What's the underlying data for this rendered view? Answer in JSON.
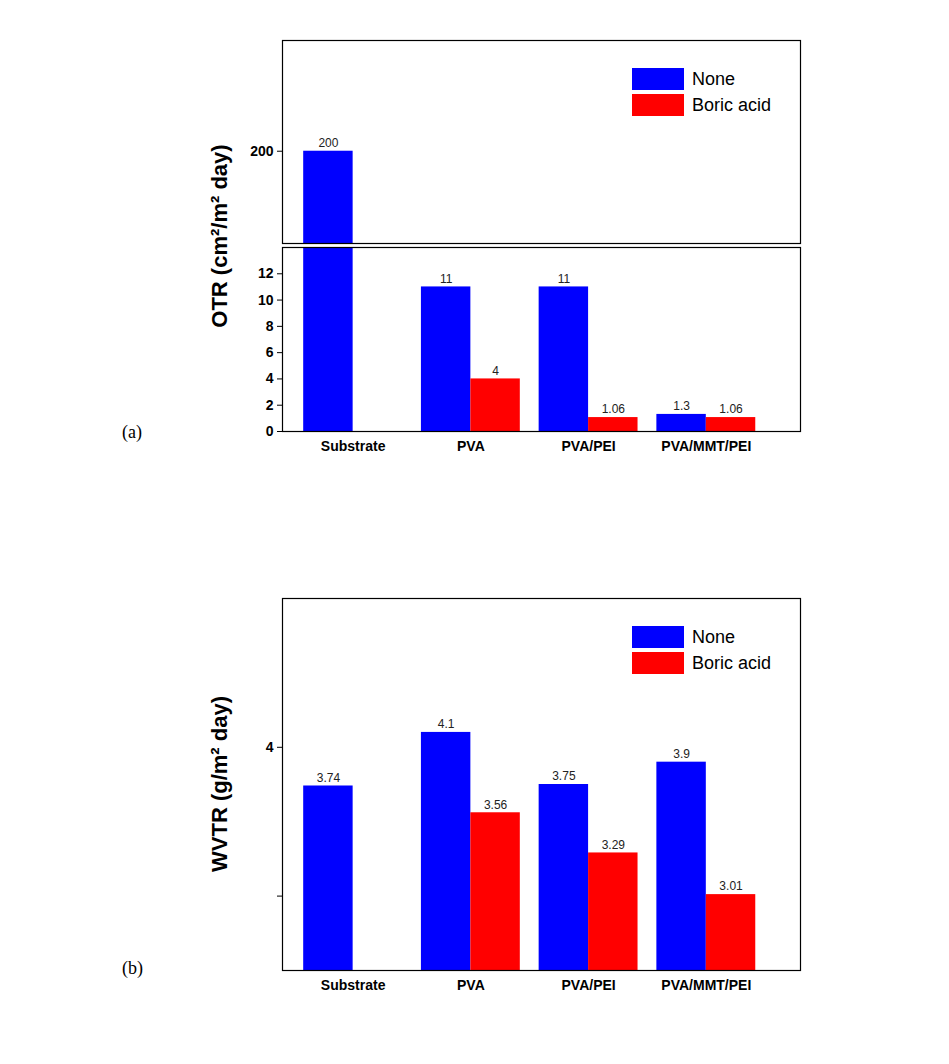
{
  "chart_data": [
    {
      "type": "bar",
      "title": "(a)",
      "categories": [
        "Substrate",
        "PVA",
        "PVA/PEI",
        "PVA/MMT/PEI"
      ],
      "series": [
        {
          "name": "None",
          "color": "#0000ff",
          "values": [
            200,
            11,
            11,
            1.3
          ]
        },
        {
          "name": "Boric acid",
          "color": "#ff0000",
          "values": [
            null,
            4,
            1.06,
            1.06
          ]
        }
      ],
      "ylabel": "OTR (cm²/m² day)",
      "ylim": [
        0,
        224
      ],
      "ybreak": [
        14,
        180
      ],
      "yticks": [
        0,
        2,
        4,
        6,
        8,
        10,
        12,
        200
      ],
      "grid": false,
      "data_labels": true,
      "legend": "upper right"
    },
    {
      "type": "bar",
      "title": "(b)",
      "categories": [
        "Substrate",
        "PVA",
        "PVA/PEI",
        "PVA/MMT/PEI"
      ],
      "series": [
        {
          "name": "None",
          "color": "#0000ff",
          "values": [
            3.74,
            4.1,
            3.75,
            3.9
          ]
        },
        {
          "name": "Boric acid",
          "color": "#ff0000",
          "values": [
            null,
            3.56,
            3.29,
            3.01
          ]
        }
      ],
      "ylabel": "WVTR (g/m² day)",
      "ylim": [
        2.5,
        5
      ],
      "yticks": [
        {
          "value": 3,
          "label": null
        },
        4
      ],
      "grid": false,
      "data_labels": true,
      "legend": "upper right"
    }
  ]
}
